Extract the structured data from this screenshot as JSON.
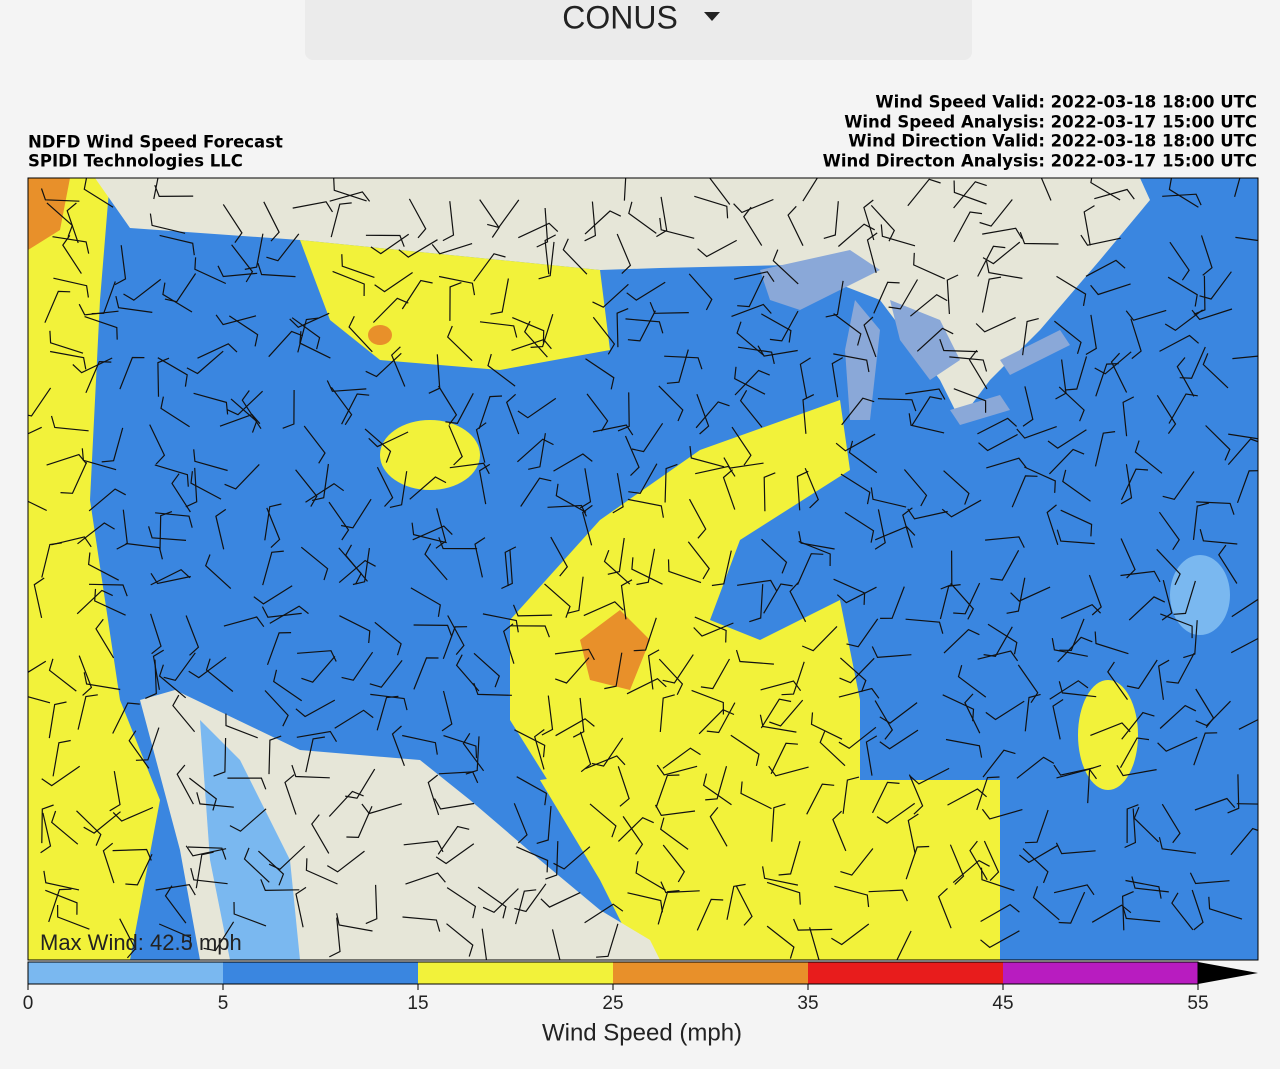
{
  "dropdown": {
    "label": "CONUS"
  },
  "header": {
    "title": "NDFD Wind Speed Forecast",
    "subtitle": "SPIDI Technologies LLC",
    "info": [
      "Wind Speed Valid: 2022-03-18 18:00 UTC",
      "Wind Speed Analysis: 2022-03-17 15:00 UTC",
      "Wind Direction Valid: 2022-03-18 18:00 UTC",
      "Wind Directon Analysis: 2022-03-17 15:00 UTC"
    ]
  },
  "map": {
    "annotation": "Max Wind: 42.5 mph"
  },
  "colorbar": {
    "label": "Wind Speed (mph)",
    "ticks": [
      0,
      5,
      15,
      25,
      35,
      45,
      55
    ],
    "colors": [
      "#7ab8f0",
      "#3a86e0",
      "#f2f23a",
      "#e8902a",
      "#e81c1c",
      "#b81cc0"
    ]
  }
}
